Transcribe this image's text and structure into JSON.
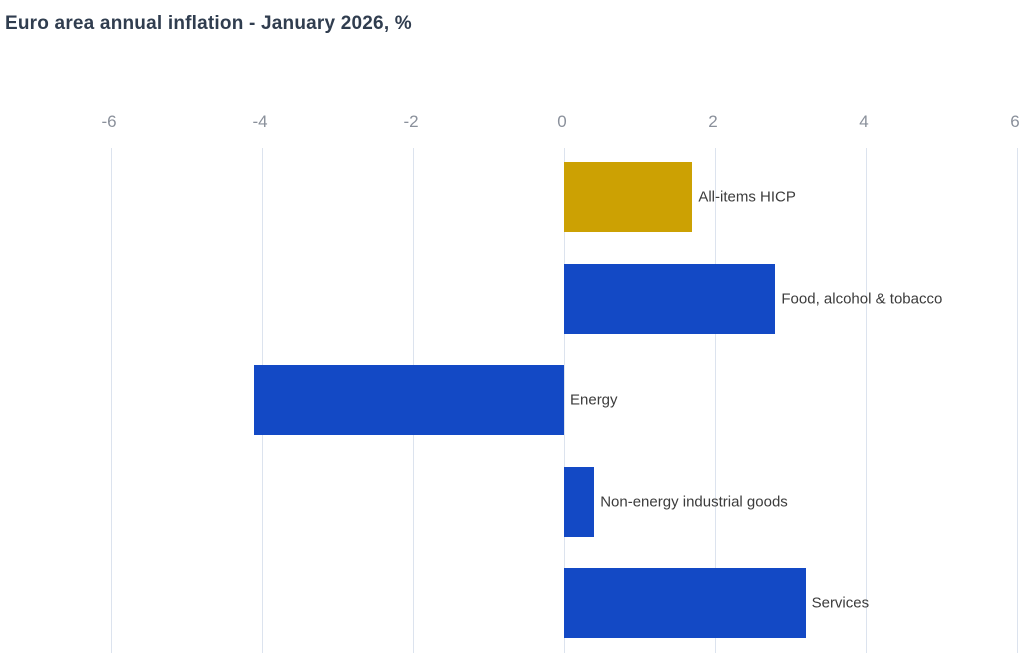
{
  "title": "Euro area annual inflation - January 2026, %",
  "colors": {
    "gold": "#CCA103",
    "blue": "#1349C5",
    "gridline": "#DCE3EE",
    "tick_label": "#8A909B",
    "bar_label": "#3B3B3B",
    "title_text": "#303D4F",
    "background": "#FFFFFF"
  },
  "chart_data": {
    "type": "bar",
    "orientation": "horizontal",
    "title": "Euro area annual inflation - January 2026, %",
    "unit": "%",
    "categories": [
      "All-items HICP",
      "Food, alcohol & tobacco",
      "Energy",
      "Non-energy industrial goods",
      "Services"
    ],
    "values": [
      1.7,
      2.8,
      -4.1,
      0.4,
      3.2
    ],
    "series_colors": [
      "gold",
      "blue",
      "blue",
      "blue",
      "blue"
    ],
    "x_ticks": [
      -6,
      -4,
      -2,
      0,
      2,
      4,
      6
    ],
    "xlim": [
      -6.7,
      6.1
    ],
    "grid": true,
    "legend": false,
    "value_axis_position": "top"
  }
}
